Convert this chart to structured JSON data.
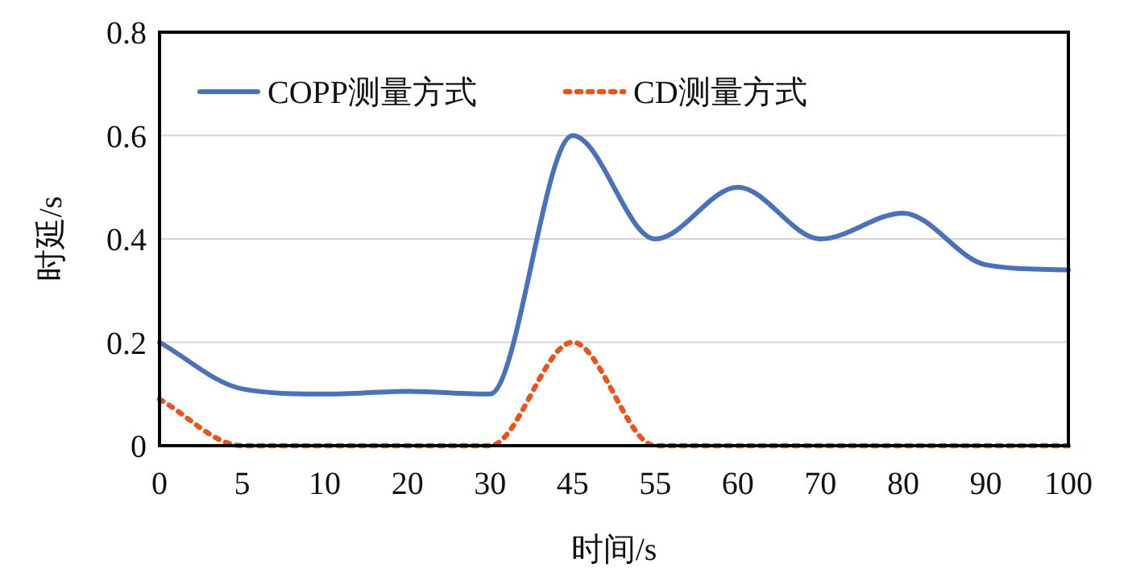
{
  "chart_data": {
    "type": "line",
    "xlabel": "时间/s",
    "ylabel": "时延/s",
    "categories": [
      "0",
      "5",
      "10",
      "20",
      "30",
      "45",
      "55",
      "60",
      "70",
      "80",
      "90",
      "100"
    ],
    "ylim": [
      0,
      0.8
    ],
    "yticks": [
      {
        "value": 0,
        "label": "0"
      },
      0.2,
      0.4,
      0.6,
      0.8
    ],
    "grid": "y",
    "legend": "top",
    "series": [
      {
        "name": "COPP测量方式",
        "color": "#4a72b8",
        "line_style": "solid",
        "values": [
          0.2,
          0.11,
          0.1,
          0.105,
          0.1,
          0.6,
          0.4,
          0.5,
          0.4,
          0.45,
          0.35,
          0.34
        ]
      },
      {
        "name": "CD测量方式",
        "color": "#e8541a",
        "line_style": "dotted",
        "values": [
          0.09,
          0,
          0,
          0,
          0,
          0.2,
          0,
          0,
          0,
          0,
          0,
          0
        ]
      }
    ]
  }
}
